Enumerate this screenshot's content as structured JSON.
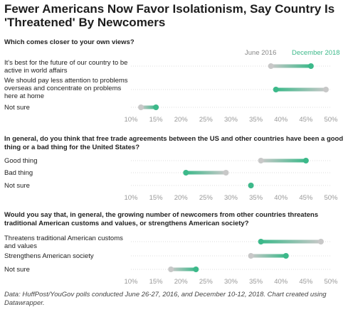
{
  "title": "Fewer Americans Now Favor Isolationism, Say Country Is 'Threatened' By Newcomers",
  "legend": {
    "start": "June 2016",
    "end": "December 2018"
  },
  "colors": {
    "start": "#c8c8c8",
    "end": "#3cb98a",
    "text": "#222222",
    "tick": "#999999",
    "grid": "#dddddd"
  },
  "source": "Data: HuffPost/YouGov polls conducted June 26-27, 2016, and December 10-12, 2018. Chart created using Datawrapper.",
  "chart_data": [
    {
      "type": "dot-range",
      "question": "Which comes closer to your own views?",
      "xlim": [
        10,
        50
      ],
      "ticks": [
        "10%",
        "15%",
        "20%",
        "25%",
        "30%",
        "35%",
        "40%",
        "45%",
        "50%"
      ],
      "rows": [
        {
          "label": "It's best for the future of our country to be active in world affairs",
          "start": 38,
          "end": 46
        },
        {
          "label": "We should pay less attention to problems overseas and concentrate on problems here at home",
          "start": 49,
          "end": 39
        },
        {
          "label": "Not sure",
          "start": 12,
          "end": 15
        }
      ]
    },
    {
      "type": "dot-range",
      "question": "In general, do you think that free trade agreements between the US and other countries have been a good thing or a bad thing for the United States?",
      "xlim": [
        10,
        50
      ],
      "ticks": [
        "10%",
        "15%",
        "20%",
        "25%",
        "30%",
        "35%",
        "40%",
        "45%",
        "50%"
      ],
      "rows": [
        {
          "label": "Good thing",
          "start": 36,
          "end": 45
        },
        {
          "label": "Bad thing",
          "start": 29,
          "end": 21
        },
        {
          "label": "Not sure",
          "start": 34,
          "end": 34
        }
      ]
    },
    {
      "type": "dot-range",
      "question": "Would you say that, in general, the growing number of newcomers from other countries threatens traditional American customs and values, or strengthens American society?",
      "xlim": [
        10,
        50
      ],
      "ticks": [
        "10%",
        "15%",
        "20%",
        "25%",
        "30%",
        "35%",
        "40%",
        "45%",
        "50%"
      ],
      "rows": [
        {
          "label": "Threatens traditional American customs and values",
          "start": 48,
          "end": 36
        },
        {
          "label": "Strengthens American society",
          "start": 34,
          "end": 41
        },
        {
          "label": "Not sure",
          "start": 18,
          "end": 23
        }
      ]
    }
  ]
}
